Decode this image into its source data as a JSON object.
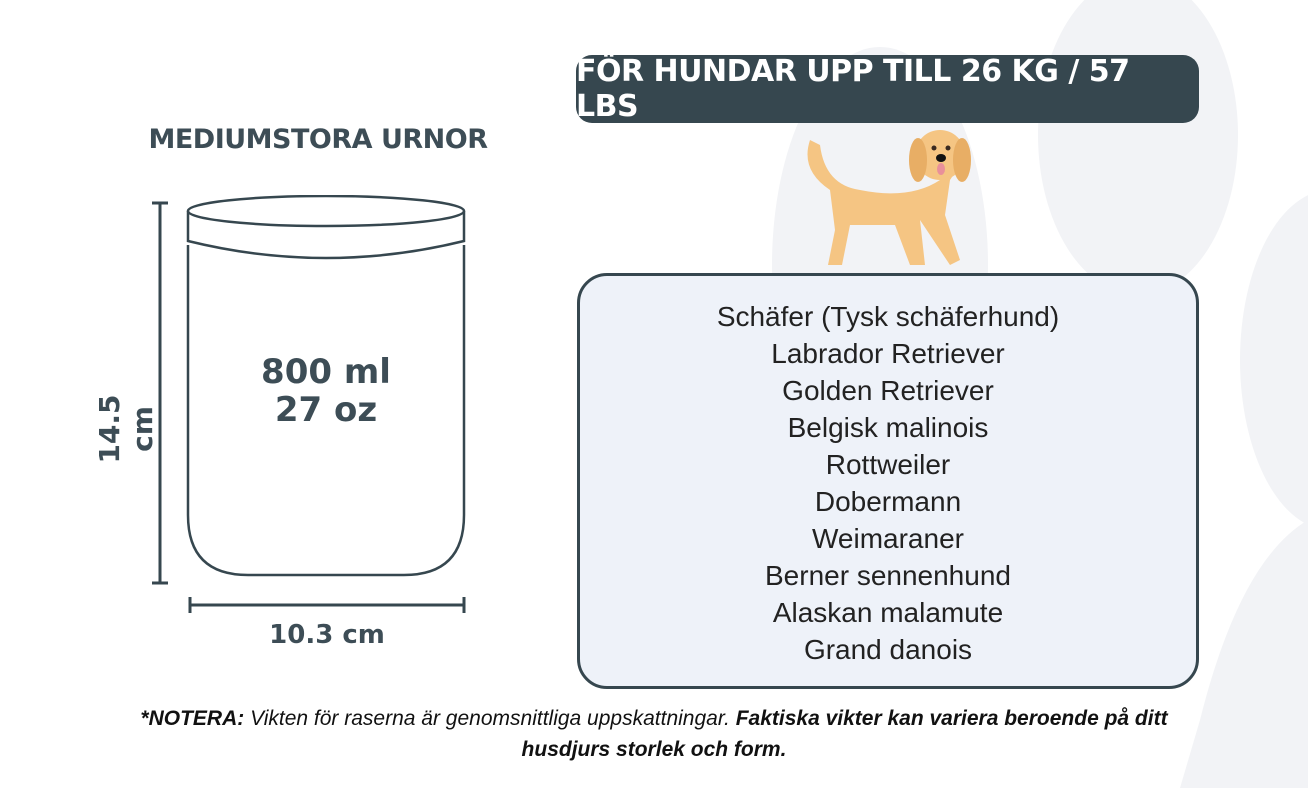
{
  "header": {
    "title": "FÖR HUNDAR UPP TILL 26 KG / 57 LBS"
  },
  "product": {
    "subtitle": "MEDIUMSTORA URNOR",
    "volume_ml": "800 ml",
    "volume_oz": "27 oz",
    "height": "14.5 cm",
    "width": "10.3 cm"
  },
  "breeds": [
    "Schäfer (Tysk schäferhund)",
    "Labrador Retriever",
    "Golden Retriever",
    "Belgisk malinois",
    "Rottweiler",
    "Dobermann",
    "Weimaraner",
    "Berner sennenhund",
    "Alaskan malamute",
    "Grand danois"
  ],
  "note": {
    "label": "*NOTERA:",
    "text": " Vikten för raserna är genomsnittliga uppskattningar. ",
    "bold_text": "Faktiska vikter kan variera beroende på ditt husdjurs storlek och form."
  },
  "colors": {
    "dark": "#36474f",
    "box_fill": "#eef2f9",
    "paw": "#f2f3f6",
    "dog": "#f5c583"
  },
  "icons": {
    "background": "paw-print-icon",
    "dog": "golden-retriever-illustration"
  }
}
